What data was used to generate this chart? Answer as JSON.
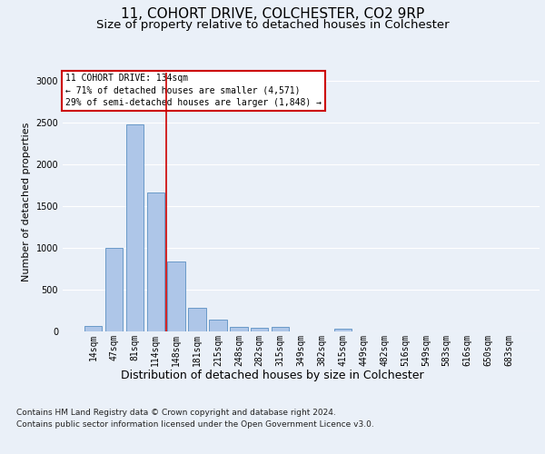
{
  "title": "11, COHORT DRIVE, COLCHESTER, CO2 9RP",
  "subtitle": "Size of property relative to detached houses in Colchester",
  "xlabel": "Distribution of detached houses by size in Colchester",
  "ylabel": "Number of detached properties",
  "categories": [
    "14sqm",
    "47sqm",
    "81sqm",
    "114sqm",
    "148sqm",
    "181sqm",
    "215sqm",
    "248sqm",
    "282sqm",
    "315sqm",
    "349sqm",
    "382sqm",
    "415sqm",
    "449sqm",
    "482sqm",
    "516sqm",
    "549sqm",
    "583sqm",
    "616sqm",
    "650sqm",
    "683sqm"
  ],
  "values": [
    70,
    1000,
    2480,
    1660,
    840,
    280,
    140,
    55,
    45,
    50,
    0,
    0,
    35,
    0,
    0,
    0,
    0,
    0,
    0,
    0,
    0
  ],
  "bar_color": "#aec6e8",
  "bar_edge_color": "#5a8fc2",
  "background_color": "#eaf0f8",
  "plot_bg_color": "#eaf0f8",
  "grid_color": "#ffffff",
  "vline_x": 3.5,
  "vline_color": "#cc0000",
  "annotation_text": "11 COHORT DRIVE: 134sqm\n← 71% of detached houses are smaller (4,571)\n29% of semi-detached houses are larger (1,848) →",
  "annotation_box_color": "#ffffff",
  "annotation_box_edge": "#cc0000",
  "footnote": "Contains HM Land Registry data © Crown copyright and database right 2024.\nContains public sector information licensed under the Open Government Licence v3.0.",
  "ylim": [
    0,
    3100
  ],
  "title_fontsize": 11,
  "subtitle_fontsize": 9.5,
  "xlabel_fontsize": 9,
  "ylabel_fontsize": 8,
  "tick_fontsize": 7,
  "footnote_fontsize": 6.5
}
